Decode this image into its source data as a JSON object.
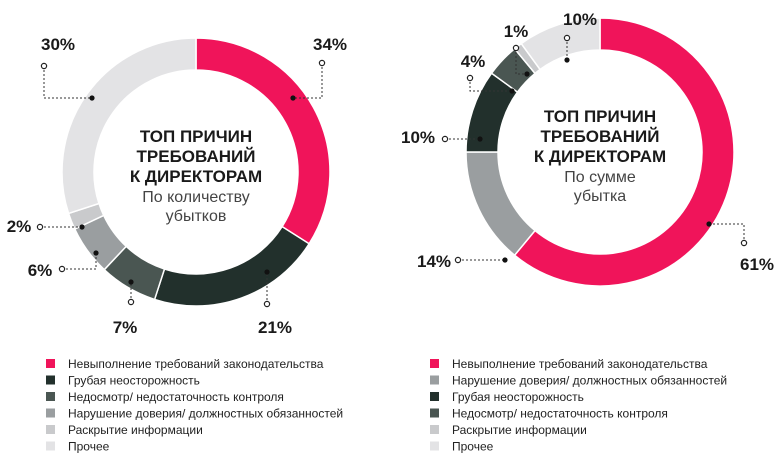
{
  "chart_data": [
    {
      "type": "pie",
      "donut": true,
      "title": [
        "ТОП ПРИЧИН",
        "ТРЕБОВАНИЙ",
        "К ДИРЕКТОРАМ"
      ],
      "subtitle": [
        "По количеству",
        "убытков"
      ],
      "slices": [
        {
          "label": "Невыполнение требований законодательства",
          "value": 34,
          "text": "34%",
          "color": "#f0145a"
        },
        {
          "label": "Грубая неосторожность",
          "value": 21,
          "text": "21%",
          "color": "#22302c"
        },
        {
          "label": "Недосмотр/ недостаточность контроля",
          "value": 7,
          "text": "7%",
          "color": "#4a5652"
        },
        {
          "label": "Нарушение доверия/ должностных обязанностей",
          "value": 6,
          "text": "6%",
          "color": "#9a9ea0"
        },
        {
          "label": "Раскрытие информации",
          "value": 2,
          "text": "2%",
          "color": "#c9cacc"
        },
        {
          "label": "Прочее",
          "value": 30,
          "text": "30%",
          "color": "#e3e3e5"
        }
      ],
      "legend": "bottom"
    },
    {
      "type": "pie",
      "donut": true,
      "title": [
        "ТОП ПРИЧИН",
        "ТРЕБОВАНИЙ",
        "К ДИРЕКТОРАМ"
      ],
      "subtitle": [
        "По сумме",
        "убытка"
      ],
      "slices": [
        {
          "label": "Невыполнение требований законодательства",
          "value": 61,
          "text": "61%",
          "color": "#f0145a"
        },
        {
          "label": "Нарушение доверия/ должностных обязанностей",
          "value": 14,
          "text": "14%",
          "color": "#9a9ea0"
        },
        {
          "label": "Грубая неосторожность",
          "value": 10,
          "text": "10%",
          "color": "#22302c"
        },
        {
          "label": "Недосмотр/ недостаточность контроля",
          "value": 4,
          "text": "4%",
          "color": "#4a5652"
        },
        {
          "label": "Раскрытие информации",
          "value": 1,
          "text": "1%",
          "color": "#c9cacc"
        },
        {
          "label": "Прочее",
          "value": 10,
          "text": "10%",
          "color": "#e3e3e5"
        }
      ],
      "legend": "bottom"
    }
  ]
}
